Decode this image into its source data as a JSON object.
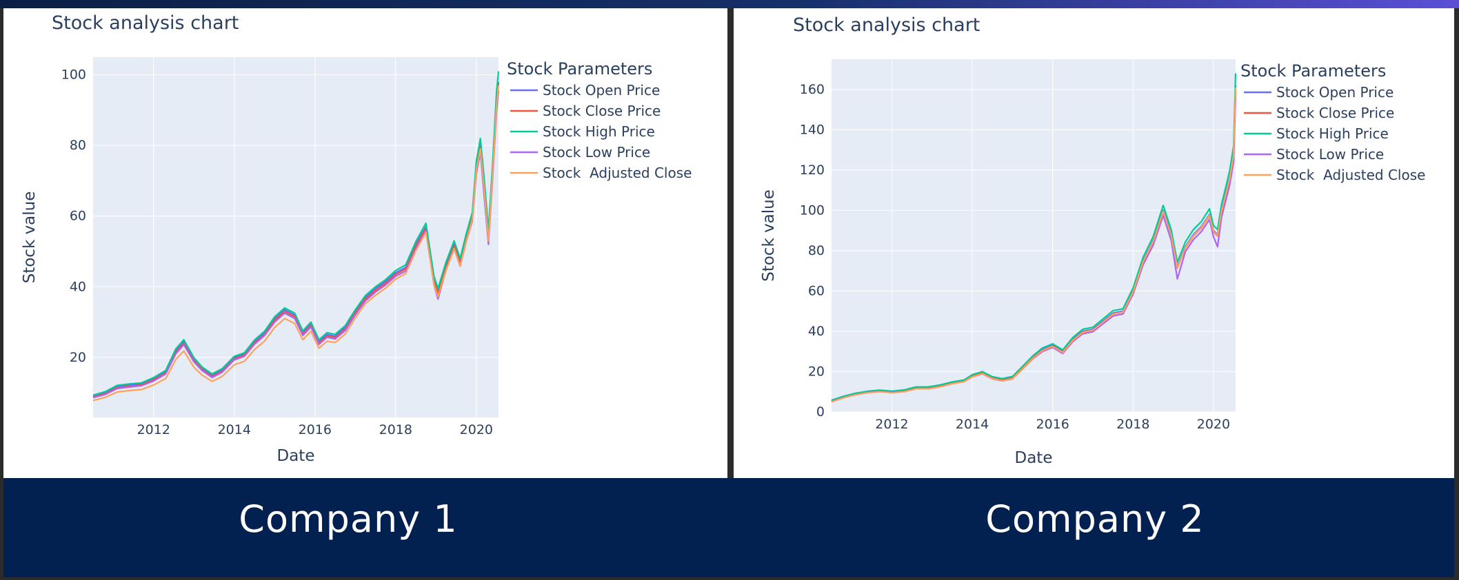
{
  "footer": {
    "company1": "Company 1",
    "company2": "Company 2"
  },
  "colors": {
    "open": "#636efa",
    "close": "#ef553b",
    "high": "#00cc96",
    "low": "#ab63fa",
    "adjusted": "#ffa15a",
    "plot_bg": "#e5ecf6",
    "footer_bg": "#022150"
  },
  "chart_data": [
    {
      "type": "line",
      "title": "Stock analysis chart",
      "xlabel": "Date",
      "ylabel": "Stock value",
      "legend_title": "Stock Parameters",
      "legend_position": "right",
      "grid": true,
      "xlim": [
        2010.5,
        2020.55
      ],
      "ylim": [
        3,
        105
      ],
      "xticks": [
        2012,
        2014,
        2016,
        2018,
        2020
      ],
      "xtick_labels": [
        "2012",
        "2014",
        "2016",
        "2018",
        "2020"
      ],
      "yticks": [
        20,
        40,
        60,
        80,
        100
      ],
      "ytick_labels": [
        "20",
        "40",
        "60",
        "80",
        "100"
      ],
      "x": [
        2010.5,
        2010.8,
        2011.1,
        2011.4,
        2011.7,
        2012.0,
        2012.3,
        2012.55,
        2012.75,
        2013.0,
        2013.2,
        2013.45,
        2013.7,
        2014.0,
        2014.25,
        2014.5,
        2014.75,
        2015.0,
        2015.25,
        2015.5,
        2015.7,
        2015.9,
        2016.1,
        2016.3,
        2016.5,
        2016.75,
        2017.0,
        2017.25,
        2017.5,
        2017.75,
        2018.0,
        2018.25,
        2018.5,
        2018.75,
        2018.95,
        2019.05,
        2019.25,
        2019.45,
        2019.6,
        2019.75,
        2019.9,
        2020.0,
        2020.1,
        2020.2,
        2020.3,
        2020.4,
        2020.5,
        2020.55
      ],
      "series": [
        {
          "name": "Stock Open Price",
          "color": "#636efa",
          "values": [
            9.0,
            10.0,
            11.8,
            12.2,
            12.5,
            14.0,
            16.0,
            22.0,
            24.5,
            19.5,
            17.0,
            15.0,
            16.5,
            20.0,
            21.0,
            24.5,
            27.0,
            31.0,
            33.5,
            32.0,
            27.0,
            29.5,
            24.5,
            26.5,
            26.0,
            28.5,
            33.0,
            37.0,
            39.5,
            41.5,
            44.0,
            45.5,
            52.0,
            57.0,
            42.0,
            38.5,
            46.0,
            52.0,
            47.0,
            54.0,
            60.0,
            74.0,
            80.0,
            68.0,
            54.0,
            72.0,
            92.0,
            98.0
          ]
        },
        {
          "name": "Stock Close Price",
          "color": "#ef553b",
          "values": [
            8.8,
            9.7,
            11.4,
            11.8,
            12.2,
            13.6,
            15.6,
            21.4,
            24.0,
            19.0,
            16.6,
            14.6,
            16.1,
            19.6,
            20.6,
            24.0,
            26.5,
            30.5,
            33.0,
            31.5,
            26.6,
            29.0,
            24.1,
            26.1,
            25.6,
            28.0,
            32.6,
            36.5,
            39.0,
            41.0,
            43.5,
            45.0,
            51.5,
            56.5,
            41.5,
            38.0,
            45.5,
            51.5,
            46.5,
            53.5,
            59.5,
            73.5,
            79.5,
            67.5,
            53.5,
            71.5,
            91.5,
            97.5
          ]
        },
        {
          "name": "Stock High Price",
          "color": "#00cc96",
          "values": [
            9.3,
            10.3,
            12.1,
            12.5,
            12.8,
            14.3,
            16.3,
            22.4,
            25.0,
            19.9,
            17.3,
            15.3,
            16.8,
            20.3,
            21.3,
            24.9,
            27.4,
            31.5,
            34.0,
            32.5,
            27.5,
            30.0,
            25.0,
            27.0,
            26.5,
            29.0,
            33.5,
            37.5,
            40.0,
            42.0,
            44.6,
            46.2,
            52.8,
            58.0,
            43.0,
            39.5,
            47.0,
            53.0,
            48.0,
            55.0,
            61.0,
            75.5,
            82.0,
            70.0,
            56.0,
            74.0,
            95.0,
            101.0
          ]
        },
        {
          "name": "Stock Low Price",
          "color": "#ab63fa",
          "values": [
            8.6,
            9.5,
            11.2,
            11.6,
            12.0,
            13.3,
            15.3,
            21.0,
            23.6,
            18.7,
            16.3,
            14.3,
            15.8,
            19.3,
            20.3,
            23.7,
            26.2,
            30.0,
            32.5,
            31.0,
            26.2,
            28.6,
            23.7,
            25.7,
            25.2,
            27.6,
            32.1,
            36.0,
            38.5,
            40.5,
            43.0,
            44.4,
            50.8,
            55.8,
            40.5,
            36.5,
            44.8,
            50.8,
            45.8,
            52.8,
            58.6,
            72.0,
            78.0,
            65.0,
            52.0,
            70.0,
            89.5,
            95.5
          ]
        },
        {
          "name": "Stock  Adjusted Close",
          "color": "#ffa15a",
          "values": [
            7.8,
            8.7,
            10.2,
            10.6,
            10.9,
            12.2,
            14.0,
            19.4,
            21.8,
            17.2,
            15.0,
            13.2,
            14.6,
            17.9,
            18.9,
            22.2,
            24.6,
            28.5,
            31.0,
            29.6,
            25.0,
            27.4,
            22.6,
            24.6,
            24.2,
            26.6,
            31.2,
            35.2,
            37.6,
            39.6,
            42.2,
            43.7,
            50.2,
            55.4,
            40.6,
            37.2,
            44.7,
            50.8,
            45.9,
            52.9,
            59.0,
            73.0,
            79.0,
            67.0,
            53.0,
            71.0,
            91.0,
            97.0
          ]
        }
      ]
    },
    {
      "type": "line",
      "title": "Stock analysis chart",
      "xlabel": "Date",
      "ylabel": "Stock value",
      "legend_title": "Stock Parameters",
      "legend_position": "right",
      "grid": true,
      "xlim": [
        2010.5,
        2020.55
      ],
      "ylim": [
        0,
        175
      ],
      "xticks": [
        2012,
        2014,
        2016,
        2018,
        2020
      ],
      "xtick_labels": [
        "2012",
        "2014",
        "2016",
        "2018",
        "2020"
      ],
      "yticks": [
        0,
        20,
        40,
        60,
        80,
        100,
        120,
        140,
        160
      ],
      "ytick_labels": [
        "0",
        "20",
        "40",
        "60",
        "80",
        "100",
        "120",
        "140",
        "160"
      ],
      "x": [
        2010.5,
        2010.8,
        2011.1,
        2011.4,
        2011.7,
        2012.0,
        2012.3,
        2012.6,
        2012.9,
        2013.2,
        2013.5,
        2013.8,
        2014.0,
        2014.25,
        2014.5,
        2014.75,
        2015.0,
        2015.25,
        2015.5,
        2015.75,
        2016.0,
        2016.25,
        2016.5,
        2016.75,
        2017.0,
        2017.25,
        2017.5,
        2017.75,
        2018.0,
        2018.25,
        2018.5,
        2018.75,
        2018.95,
        2019.1,
        2019.3,
        2019.5,
        2019.7,
        2019.9,
        2020.0,
        2020.1,
        2020.2,
        2020.3,
        2020.4,
        2020.5,
        2020.55
      ],
      "series": [
        {
          "name": "Stock Open Price",
          "color": "#636efa",
          "values": [
            5.5,
            7.5,
            9.0,
            10.0,
            10.5,
            10.0,
            10.5,
            12.0,
            12.0,
            13.0,
            14.5,
            15.5,
            18.0,
            19.5,
            17.0,
            16.0,
            17.0,
            22.0,
            27.0,
            31.0,
            33.0,
            30.0,
            36.0,
            40.0,
            41.0,
            45.0,
            49.0,
            50.0,
            60.0,
            75.0,
            85.0,
            100.0,
            88.0,
            72.0,
            82.0,
            88.0,
            92.0,
            98.0,
            90.0,
            88.0,
            100.0,
            108.0,
            116.0,
            128.0,
            162.0
          ]
        },
        {
          "name": "Stock Close Price",
          "color": "#ef553b",
          "values": [
            5.4,
            7.3,
            8.8,
            9.8,
            10.3,
            9.8,
            10.3,
            11.8,
            11.8,
            12.8,
            14.3,
            15.3,
            17.8,
            19.3,
            16.8,
            15.8,
            16.8,
            21.7,
            26.7,
            30.6,
            32.6,
            29.6,
            35.6,
            39.6,
            40.6,
            44.5,
            48.5,
            49.5,
            59.5,
            74.4,
            84.4,
            99.3,
            87.3,
            71.3,
            81.3,
            87.3,
            91.3,
            97.3,
            89.3,
            87.3,
            99.3,
            107.2,
            115.2,
            127.0,
            160.5
          ]
        },
        {
          "name": "Stock High Price",
          "color": "#00cc96",
          "values": [
            5.8,
            7.8,
            9.3,
            10.3,
            10.8,
            10.3,
            10.9,
            12.4,
            12.4,
            13.4,
            14.9,
            15.9,
            18.5,
            20.0,
            17.5,
            16.5,
            17.6,
            22.6,
            27.7,
            31.8,
            33.8,
            30.8,
            36.9,
            41.0,
            42.0,
            46.1,
            50.2,
            51.2,
            61.5,
            76.8,
            87.0,
            102.5,
            90.3,
            74.3,
            84.3,
            90.5,
            94.5,
            100.8,
            92.5,
            90.5,
            103.0,
            111.0,
            119.5,
            132.0,
            168.0
          ]
        },
        {
          "name": "Stock Low Price",
          "color": "#ab63fa",
          "values": [
            5.2,
            7.1,
            8.6,
            9.6,
            10.1,
            9.6,
            10.1,
            11.5,
            11.5,
            12.5,
            14.0,
            15.0,
            17.4,
            18.9,
            16.4,
            15.4,
            16.4,
            21.3,
            26.2,
            30.0,
            32.0,
            29.0,
            34.9,
            38.8,
            39.8,
            43.7,
            47.6,
            48.6,
            58.4,
            73.0,
            82.8,
            97.5,
            85.0,
            66.0,
            79.5,
            85.5,
            89.5,
            95.5,
            87.0,
            82.0,
            96.5,
            104.5,
            112.5,
            124.0,
            156.0
          ]
        },
        {
          "name": "Stock  Adjusted Close",
          "color": "#ffa15a",
          "values": [
            5.0,
            7.0,
            8.5,
            9.5,
            10.0,
            9.5,
            10.0,
            11.5,
            11.5,
            12.5,
            14.0,
            15.0,
            17.5,
            19.0,
            16.5,
            15.5,
            16.5,
            21.5,
            26.5,
            30.5,
            32.5,
            29.5,
            35.5,
            39.5,
            40.5,
            44.5,
            48.5,
            49.5,
            59.5,
            74.5,
            84.5,
            99.5,
            87.5,
            71.5,
            81.5,
            87.5,
            91.5,
            97.5,
            89.5,
            87.5,
            99.5,
            107.5,
            115.5,
            127.5,
            161.0
          ]
        }
      ]
    }
  ]
}
